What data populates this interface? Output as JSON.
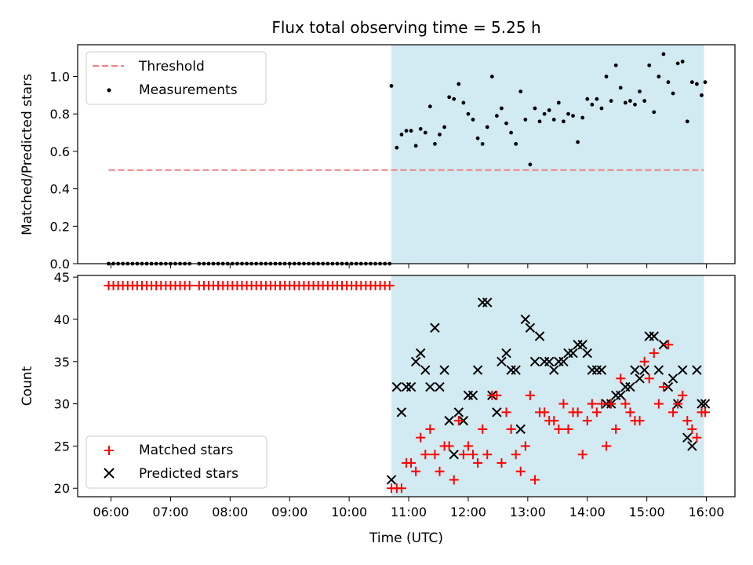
{
  "title": "Flux total observing time = 5.25 h",
  "xlabel": "Time (UTC)",
  "colors": {
    "threshold": "#f08080",
    "matched": "#ff0000",
    "predicted": "#000000",
    "measurement": "#000000",
    "observing_window": "#add8e6"
  },
  "observing_window_hours": [
    10.71,
    15.96
  ],
  "chart_data": [
    {
      "type": "scatter",
      "ylabel": "Matched/Predicted stars",
      "ylim": [
        0,
        1.17
      ],
      "xlim": [
        5.44,
        16.48
      ],
      "x_ticks": [
        "06:00",
        "07:00",
        "08:00",
        "09:00",
        "10:00",
        "11:00",
        "12:00",
        "13:00",
        "14:00",
        "15:00",
        "16:00"
      ],
      "x_tick_values": [
        6,
        7,
        8,
        9,
        10,
        11,
        12,
        13,
        14,
        15,
        16
      ],
      "y_ticks": [
        "0.0",
        "0.2",
        "0.4",
        "0.6",
        "0.8",
        "1.0"
      ],
      "y_tick_values": [
        0,
        0.2,
        0.4,
        0.6,
        0.8,
        1.0
      ],
      "legend": {
        "position": "top-left",
        "entries": [
          "Threshold",
          "Measurements"
        ]
      },
      "threshold": {
        "name": "Threshold",
        "value": 0.5,
        "x_range": [
          5.96,
          15.96
        ]
      },
      "measurements": {
        "name": "Measurements",
        "zeros_x": [
          5.96,
          6.04,
          6.12,
          6.2,
          6.28,
          6.36,
          6.44,
          6.52,
          6.6,
          6.68,
          6.76,
          6.84,
          6.92,
          7.0,
          7.08,
          7.16,
          7.24,
          7.32,
          7.48,
          7.56,
          7.64,
          7.72,
          7.8,
          7.88,
          7.96,
          8.04,
          8.12,
          8.2,
          8.28,
          8.36,
          8.44,
          8.52,
          8.6,
          8.68,
          8.76,
          8.84,
          8.92,
          9.0,
          9.08,
          9.16,
          9.24,
          9.32,
          9.4,
          9.48,
          9.56,
          9.64,
          9.72,
          9.8,
          9.88,
          9.96,
          10.04,
          10.12,
          10.2,
          10.28,
          10.36,
          10.44,
          10.52,
          10.6,
          10.68
        ],
        "x": [
          10.71,
          10.8,
          10.88,
          10.96,
          11.04,
          11.12,
          11.2,
          11.28,
          11.36,
          11.44,
          11.52,
          11.6,
          11.68,
          11.76,
          11.84,
          11.92,
          12.0,
          12.08,
          12.16,
          12.24,
          12.32,
          12.4,
          12.48,
          12.56,
          12.64,
          12.72,
          12.8,
          12.88,
          12.96,
          13.04,
          13.12,
          13.2,
          13.28,
          13.36,
          13.44,
          13.52,
          13.6,
          13.68,
          13.76,
          13.84,
          13.92,
          14.0,
          14.08,
          14.16,
          14.24,
          14.32,
          14.4,
          14.48,
          14.56,
          14.64,
          14.72,
          14.8,
          14.88,
          14.96,
          15.04,
          15.12,
          15.2,
          15.28,
          15.36,
          15.44,
          15.52,
          15.6,
          15.68,
          15.76,
          15.84,
          15.92,
          15.98
        ],
        "y": [
          0.95,
          0.62,
          0.69,
          0.71,
          0.71,
          0.63,
          0.72,
          0.7,
          0.84,
          0.64,
          0.69,
          0.73,
          0.89,
          0.88,
          0.96,
          0.86,
          0.8,
          0.77,
          0.67,
          0.64,
          0.73,
          1.0,
          0.79,
          0.83,
          0.75,
          0.7,
          0.64,
          0.92,
          0.77,
          0.53,
          0.83,
          0.76,
          0.8,
          0.82,
          0.77,
          0.86,
          0.76,
          0.8,
          0.79,
          0.65,
          0.78,
          0.88,
          0.85,
          0.88,
          0.83,
          1.0,
          0.87,
          1.06,
          0.94,
          0.86,
          0.87,
          0.85,
          0.92,
          0.87,
          1.06,
          0.81,
          1.0,
          1.12,
          0.97,
          0.91,
          1.07,
          1.08,
          0.76,
          0.97,
          0.96,
          0.9,
          0.97
        ]
      }
    },
    {
      "type": "scatter",
      "ylabel": "Count",
      "ylim": [
        19,
        45.2
      ],
      "xlim": [
        5.44,
        16.48
      ],
      "x_ticks": [
        "06:00",
        "07:00",
        "08:00",
        "09:00",
        "10:00",
        "11:00",
        "12:00",
        "13:00",
        "14:00",
        "15:00",
        "16:00"
      ],
      "x_tick_values": [
        6,
        7,
        8,
        9,
        10,
        11,
        12,
        13,
        14,
        15,
        16
      ],
      "y_ticks": [
        "20",
        "25",
        "30",
        "35",
        "40",
        "45"
      ],
      "y_tick_values": [
        20,
        25,
        30,
        35,
        40,
        45
      ],
      "legend": {
        "position": "bottom-left",
        "entries": [
          "Matched stars",
          "Predicted stars"
        ]
      },
      "series": [
        {
          "name": "Matched stars",
          "marker": "plus",
          "early_x": [
            5.96,
            6.04,
            6.12,
            6.2,
            6.28,
            6.36,
            6.44,
            6.52,
            6.6,
            6.68,
            6.76,
            6.84,
            6.92,
            7.0,
            7.08,
            7.16,
            7.24,
            7.32,
            7.48,
            7.56,
            7.64,
            7.72,
            7.8,
            7.88,
            7.96,
            8.04,
            8.12,
            8.2,
            8.28,
            8.36,
            8.44,
            8.52,
            8.6,
            8.68,
            8.76,
            8.84,
            8.92,
            9.0,
            9.08,
            9.16,
            9.24,
            9.32,
            9.4,
            9.48,
            9.56,
            9.64,
            9.72,
            9.8,
            9.88,
            9.96,
            10.04,
            10.12,
            10.2,
            10.28,
            10.36,
            10.44,
            10.52,
            10.6,
            10.68
          ],
          "early_value": 44,
          "x": [
            10.71,
            10.8,
            10.88,
            10.96,
            11.04,
            11.12,
            11.2,
            11.28,
            11.36,
            11.44,
            11.52,
            11.6,
            11.68,
            11.76,
            11.84,
            11.92,
            12.0,
            12.08,
            12.16,
            12.24,
            12.32,
            12.4,
            12.48,
            12.56,
            12.64,
            12.72,
            12.8,
            12.88,
            12.96,
            13.04,
            13.12,
            13.2,
            13.28,
            13.36,
            13.44,
            13.52,
            13.6,
            13.68,
            13.76,
            13.84,
            13.92,
            14.0,
            14.08,
            14.16,
            14.24,
            14.32,
            14.4,
            14.48,
            14.56,
            14.64,
            14.72,
            14.8,
            14.88,
            14.96,
            15.04,
            15.12,
            15.2,
            15.28,
            15.36,
            15.44,
            15.52,
            15.6,
            15.68,
            15.76,
            15.84,
            15.92,
            15.98
          ],
          "y": [
            20,
            20,
            20,
            23,
            23,
            22,
            26,
            24,
            27,
            24,
            22,
            25,
            25,
            21,
            28,
            24,
            25,
            24,
            23,
            27,
            24,
            31,
            31,
            23,
            29,
            27,
            24,
            22,
            25,
            31,
            21,
            29,
            29,
            28,
            28,
            27,
            30,
            27,
            29,
            29,
            24,
            28,
            30,
            29,
            30,
            25,
            30,
            27,
            33,
            30,
            29,
            28,
            28,
            35,
            33,
            36,
            30,
            32,
            37,
            29,
            30,
            31,
            28,
            27,
            26,
            29,
            29
          ]
        },
        {
          "name": "Predicted stars",
          "marker": "x",
          "x": [
            10.71,
            10.8,
            10.88,
            10.96,
            11.04,
            11.12,
            11.2,
            11.28,
            11.36,
            11.44,
            11.52,
            11.6,
            11.68,
            11.76,
            11.84,
            11.92,
            12.0,
            12.08,
            12.16,
            12.24,
            12.32,
            12.4,
            12.48,
            12.56,
            12.64,
            12.72,
            12.8,
            12.88,
            12.96,
            13.04,
            13.12,
            13.2,
            13.28,
            13.36,
            13.44,
            13.52,
            13.6,
            13.68,
            13.76,
            13.84,
            13.92,
            14.0,
            14.08,
            14.16,
            14.24,
            14.32,
            14.4,
            14.48,
            14.56,
            14.64,
            14.72,
            14.8,
            14.88,
            14.96,
            15.04,
            15.12,
            15.2,
            15.28,
            15.36,
            15.44,
            15.52,
            15.6,
            15.68,
            15.76,
            15.84,
            15.92,
            15.98
          ],
          "y": [
            21,
            32,
            29,
            32,
            32,
            35,
            36,
            34,
            32,
            39,
            32,
            34,
            28,
            24,
            29,
            28,
            31,
            31,
            34,
            42,
            42,
            31,
            29,
            35,
            36,
            34,
            34,
            27,
            40,
            39,
            35,
            38,
            35,
            35,
            34,
            35,
            35,
            36,
            36,
            37,
            37,
            36,
            34,
            34,
            34,
            30,
            30,
            31,
            31,
            32,
            32,
            34,
            33,
            34,
            38,
            38,
            34,
            37,
            32,
            33,
            30,
            34,
            26,
            25,
            34,
            30,
            30
          ]
        }
      ]
    }
  ]
}
